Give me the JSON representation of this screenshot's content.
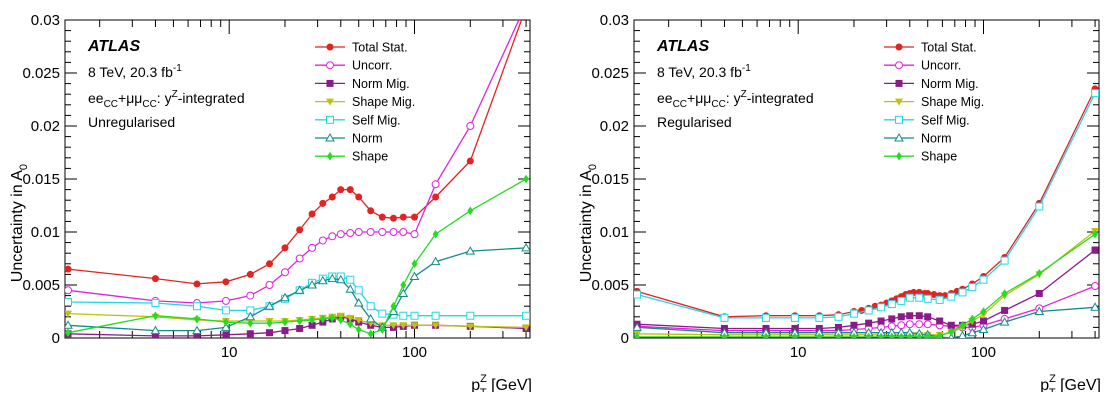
{
  "chart_data": [
    {
      "type": "line",
      "title": "",
      "ylabel": "Uncertainty in A",
      "ylabel_sub": "0",
      "xlabel": "p",
      "xlabel_sup": "Z",
      "xlabel_sub": "T",
      "xlabel_unit": " [GeV]",
      "xscale": "log",
      "xlim": [
        1.3,
        420
      ],
      "ylim": [
        0,
        0.03
      ],
      "yticks": [
        "0",
        "0.005",
        "0.01",
        "0.015",
        "0.02",
        "0.025",
        "0.03"
      ],
      "xticks": [
        "10",
        "100"
      ],
      "grid": false,
      "legend_position": "top-right",
      "annotation": {
        "experiment": "ATLAS",
        "energy": "8 TeV, 20.3 fb",
        "lumi_sup": "-1",
        "channel": "ee",
        "channel_sub1": "CC",
        "channel_plus": "+μμ",
        "channel_sub2": "CC",
        "channel_rest": ": y",
        "channel_sup": "Z",
        "channel_end": "-integrated",
        "method": "Unregularised"
      },
      "series": [
        {
          "name": "Total Stat.",
          "color": "#e32222",
          "marker": "circle-filled",
          "x": [
            1.35,
            4,
            6.7,
            9.6,
            13,
            16.5,
            20,
            24,
            28,
            32,
            36,
            40,
            45,
            50,
            58,
            67,
            77,
            87,
            100,
            130,
            200,
            400
          ],
          "y": [
            0.0065,
            0.0056,
            0.0051,
            0.0053,
            0.006,
            0.007,
            0.0085,
            0.0102,
            0.0117,
            0.0127,
            0.0133,
            0.014,
            0.014,
            0.0133,
            0.012,
            0.0114,
            0.0113,
            0.0114,
            0.0114,
            0.0133,
            0.0167,
            0.0312
          ]
        },
        {
          "name": "Uncorr.",
          "color": "#e022e0",
          "marker": "circle-open",
          "x": [
            1.35,
            4,
            6.7,
            9.6,
            13,
            16.5,
            20,
            24,
            28,
            32,
            36,
            40,
            45,
            50,
            58,
            67,
            77,
            87,
            100,
            130,
            200,
            400
          ],
          "y": [
            0.0045,
            0.0035,
            0.0033,
            0.0035,
            0.004,
            0.005,
            0.0062,
            0.0075,
            0.0085,
            0.0092,
            0.0096,
            0.0098,
            0.0099,
            0.01,
            0.01,
            0.01,
            0.01,
            0.01,
            0.0098,
            0.0145,
            0.02,
            0.0315
          ]
        },
        {
          "name": "Norm Mig.",
          "color": "#8b1a8b",
          "marker": "square-filled",
          "x": [
            1.35,
            4,
            6.7,
            9.6,
            13,
            16.5,
            20,
            24,
            28,
            32,
            36,
            40,
            45,
            50,
            58,
            67,
            77,
            87,
            100,
            130,
            200,
            400
          ],
          "y": [
            0.0004,
            0.0002,
            0.0002,
            0.0003,
            0.0004,
            0.0005,
            0.0007,
            0.0009,
            0.0012,
            0.0015,
            0.0018,
            0.002,
            0.0018,
            0.0015,
            0.0012,
            0.001,
            0.001,
            0.0011,
            0.0012,
            0.0012,
            0.0011,
            0.0009
          ]
        },
        {
          "name": "Shape Mig.",
          "color": "#c0c010",
          "marker": "triangle-down-filled",
          "x": [
            1.35,
            4,
            6.7,
            9.6,
            13,
            16.5,
            20,
            24,
            28,
            32,
            36,
            40,
            45,
            50,
            58,
            67,
            77,
            87,
            100,
            130,
            200,
            400
          ],
          "y": [
            0.0023,
            0.002,
            0.0017,
            0.0016,
            0.0016,
            0.0016,
            0.0016,
            0.0017,
            0.0018,
            0.0019,
            0.002,
            0.0021,
            0.0019,
            0.0017,
            0.0014,
            0.0012,
            0.0012,
            0.0012,
            0.0012,
            0.0012,
            0.0011,
            0.001
          ]
        },
        {
          "name": "Self Mig.",
          "color": "#22d8e6",
          "marker": "square-open",
          "x": [
            1.35,
            4,
            6.7,
            9.6,
            13,
            16.5,
            20,
            24,
            28,
            32,
            36,
            40,
            45,
            50,
            58,
            67,
            77,
            87,
            100,
            130,
            200,
            400
          ],
          "y": [
            0.0034,
            0.0033,
            0.003,
            0.0026,
            0.0026,
            0.003,
            0.0037,
            0.0045,
            0.0052,
            0.0056,
            0.0058,
            0.0058,
            0.0055,
            0.0045,
            0.003,
            0.0023,
            0.0022,
            0.0021,
            0.0021,
            0.0021,
            0.0021,
            0.0021
          ]
        },
        {
          "name": "Norm",
          "color": "#148b8b",
          "marker": "triangle-open",
          "x": [
            1.35,
            4,
            6.7,
            9.6,
            13,
            16.5,
            20,
            24,
            28,
            32,
            36,
            40,
            45,
            50,
            58,
            67,
            77,
            87,
            100,
            130,
            200,
            400
          ],
          "y": [
            0.0012,
            0.0007,
            0.0007,
            0.001,
            0.002,
            0.003,
            0.0038,
            0.0045,
            0.005,
            0.0054,
            0.0056,
            0.0055,
            0.0046,
            0.0033,
            0.0018,
            0.001,
            0.0025,
            0.0042,
            0.0058,
            0.0072,
            0.0082,
            0.0085
          ]
        },
        {
          "name": "Shape",
          "color": "#22dd22",
          "marker": "diamond-filled",
          "x": [
            1.35,
            4,
            6.7,
            9.6,
            13,
            16.5,
            20,
            24,
            28,
            32,
            36,
            40,
            45,
            50,
            58,
            67,
            77,
            87,
            100,
            130,
            200,
            400
          ],
          "y": [
            0.0005,
            0.0021,
            0.0018,
            0.0015,
            0.0014,
            0.0014,
            0.0015,
            0.0016,
            0.0017,
            0.0018,
            0.0019,
            0.0017,
            0.0013,
            0.0008,
            0.0004,
            0.0008,
            0.003,
            0.005,
            0.007,
            0.0098,
            0.012,
            0.015
          ]
        }
      ]
    },
    {
      "type": "line",
      "title": "",
      "ylabel": "Uncertainty in A",
      "ylabel_sub": "0",
      "xlabel": "p",
      "xlabel_sup": "Z",
      "xlabel_sub": "T",
      "xlabel_unit": " [GeV]",
      "xscale": "log",
      "xlim": [
        1.3,
        420
      ],
      "ylim": [
        0,
        0.03
      ],
      "yticks": [
        "0",
        "0.005",
        "0.01",
        "0.015",
        "0.02",
        "0.025",
        "0.03"
      ],
      "xticks": [
        "10",
        "100"
      ],
      "grid": false,
      "legend_position": "top-right",
      "annotation": {
        "experiment": "ATLAS",
        "energy": "8 TeV, 20.3 fb",
        "lumi_sup": "-1",
        "channel": "ee",
        "channel_sub1": "CC",
        "channel_plus": "+μμ",
        "channel_sub2": "CC",
        "channel_rest": ": y",
        "channel_sup": "Z",
        "channel_end": "-integrated",
        "method": "Regularised"
      },
      "series": [
        {
          "name": "Total Stat.",
          "color": "#e32222",
          "marker": "circle-filled",
          "x": [
            1.35,
            4,
            6.7,
            9.6,
            13,
            16.5,
            20,
            22,
            24,
            26,
            28,
            30,
            32,
            34,
            36,
            38,
            40,
            42,
            45,
            48,
            50,
            54,
            58,
            62,
            67,
            72,
            77,
            87,
            100,
            130,
            200,
            400
          ],
          "y": [
            0.0044,
            0.002,
            0.0021,
            0.0021,
            0.0021,
            0.0022,
            0.0025,
            0.0026,
            0.0028,
            0.003,
            0.0031,
            0.0033,
            0.0035,
            0.0037,
            0.0039,
            0.0041,
            0.0042,
            0.0043,
            0.0043,
            0.0042,
            0.0042,
            0.0041,
            0.004,
            0.004,
            0.0042,
            0.0044,
            0.0046,
            0.0051,
            0.0058,
            0.0076,
            0.0127,
            0.0235
          ]
        },
        {
          "name": "Uncorr.",
          "color": "#e022e0",
          "marker": "circle-open",
          "x": [
            1.35,
            4,
            6.7,
            9.6,
            13,
            16.5,
            20,
            24,
            28,
            32,
            36,
            40,
            45,
            50,
            58,
            67,
            77,
            87,
            100,
            130,
            200,
            400
          ],
          "y": [
            0.0011,
            0.0007,
            0.0007,
            0.0007,
            0.0007,
            0.0007,
            0.0008,
            0.0009,
            0.001,
            0.0011,
            0.0012,
            0.0013,
            0.0013,
            0.0013,
            0.0012,
            0.0011,
            0.001,
            0.001,
            0.0012,
            0.0018,
            0.0028,
            0.0049
          ]
        },
        {
          "name": "Norm Mig.",
          "color": "#8b1a8b",
          "marker": "square-filled",
          "x": [
            1.35,
            4,
            6.7,
            9.6,
            13,
            16.5,
            20,
            24,
            28,
            32,
            36,
            40,
            45,
            50,
            58,
            67,
            77,
            87,
            100,
            130,
            200,
            400
          ],
          "y": [
            0.0013,
            0.0009,
            0.0009,
            0.0009,
            0.0009,
            0.001,
            0.0012,
            0.0014,
            0.0016,
            0.0018,
            0.002,
            0.0021,
            0.0021,
            0.002,
            0.0016,
            0.0012,
            0.0012,
            0.0013,
            0.0016,
            0.0026,
            0.0042,
            0.0083
          ]
        },
        {
          "name": "Shape Mig.",
          "color": "#c0c010",
          "marker": "triangle-down-filled",
          "x": [
            1.35,
            4,
            6.7,
            9.6,
            13,
            16.5,
            20,
            24,
            28,
            32,
            36,
            40,
            45,
            50,
            58,
            67,
            77,
            87,
            100,
            130,
            200,
            400
          ],
          "y": [
            0.0004,
            0.0003,
            0.0003,
            0.0003,
            0.0003,
            0.0003,
            0.0003,
            0.0003,
            0.0003,
            0.0003,
            0.0003,
            0.0003,
            0.0003,
            0.0003,
            0.0003,
            0.0005,
            0.001,
            0.0016,
            0.0022,
            0.004,
            0.006,
            0.0101
          ]
        },
        {
          "name": "Self Mig.",
          "color": "#22d8e6",
          "marker": "square-open",
          "x": [
            1.35,
            4,
            6.7,
            9.6,
            13,
            16.5,
            20,
            24,
            28,
            32,
            36,
            40,
            45,
            50,
            58,
            67,
            77,
            87,
            100,
            130,
            200,
            400
          ],
          "y": [
            0.0041,
            0.0019,
            0.0019,
            0.0019,
            0.0019,
            0.002,
            0.0023,
            0.0026,
            0.0029,
            0.0032,
            0.0035,
            0.0038,
            0.0038,
            0.0037,
            0.0036,
            0.0039,
            0.0043,
            0.0048,
            0.0055,
            0.0073,
            0.0124,
            0.0231
          ]
        },
        {
          "name": "Norm",
          "color": "#148b8b",
          "marker": "triangle-open",
          "x": [
            1.35,
            4,
            6.7,
            9.6,
            13,
            16.5,
            20,
            24,
            28,
            32,
            36,
            40,
            45,
            50,
            58,
            67,
            77,
            87,
            100,
            130,
            200,
            400
          ],
          "y": [
            0.001,
            0.0005,
            0.0005,
            0.0005,
            0.0005,
            0.0005,
            0.0005,
            0.0005,
            0.0005,
            0.0005,
            0.0005,
            0.0005,
            0.0004,
            0.0003,
            0.0001,
            0.0,
            0.0002,
            0.0005,
            0.0008,
            0.0015,
            0.0025,
            0.0029
          ]
        },
        {
          "name": "Shape",
          "color": "#22dd22",
          "marker": "diamond-filled",
          "x": [
            1.35,
            4,
            6.7,
            9.6,
            13,
            16.5,
            20,
            24,
            28,
            32,
            36,
            40,
            45,
            50,
            58,
            67,
            77,
            87,
            100,
            130,
            200,
            400
          ],
          "y": [
            0.0001,
            0.0001,
            0.0001,
            0.0001,
            0.0001,
            0.0001,
            0.0001,
            0.0001,
            0.0001,
            0.0001,
            0.0001,
            0.0001,
            0.0001,
            0.0001,
            0.0002,
            0.0006,
            0.0012,
            0.0018,
            0.0025,
            0.0042,
            0.0061,
            0.0098
          ]
        }
      ]
    }
  ]
}
